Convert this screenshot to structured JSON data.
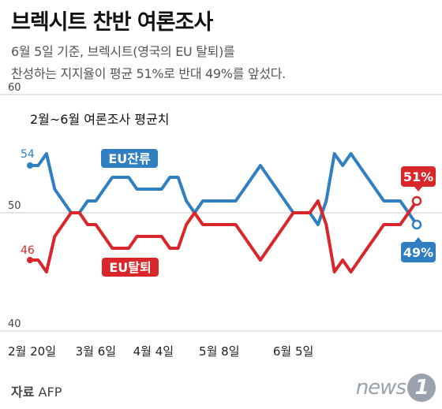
{
  "header": {
    "title": "브렉시트 찬반 여론조사",
    "subtitle_line1": "6월 5일 기준, 브렉시트(영국의 EU 탈퇴)를",
    "subtitle_line2": "찬성하는 지지율이 평균 51%로 반대 49%를 앞섰다."
  },
  "footer": {
    "source_label": "자료",
    "source_value": "AFP",
    "logo_text": "news",
    "logo_mark": "1"
  },
  "colors": {
    "remain": "#2f7fc1",
    "leave": "#d9262a",
    "axis": "#cccccc"
  },
  "chart_data": {
    "type": "line",
    "title": "2월~6월 여론조사 평균치",
    "ylim": [
      40,
      60
    ],
    "y_ticks": [
      60,
      50,
      40
    ],
    "x_ticks": [
      "2월 20일",
      "3월 6일",
      "4월 4일",
      "5월 8일",
      "6월 5일"
    ],
    "x_tick_index": [
      0,
      8,
      15,
      23,
      32
    ],
    "series": [
      {
        "name": "EU잔류",
        "values": [
          54,
          54,
          55,
          52,
          51,
          50,
          50,
          51,
          51,
          52,
          53,
          53,
          53,
          52,
          52,
          52,
          52,
          53,
          53,
          51,
          50,
          51,
          51,
          51,
          51,
          51,
          52,
          53,
          54,
          53,
          52,
          51,
          50,
          50,
          50,
          49,
          51,
          55,
          54,
          55,
          54,
          53,
          52,
          51,
          51,
          51,
          50,
          49
        ],
        "start_label": "54",
        "end_label": "49%"
      },
      {
        "name": "EU탈퇴",
        "values": [
          46,
          46,
          45,
          48,
          49,
          50,
          50,
          49,
          49,
          48,
          47,
          47,
          47,
          48,
          48,
          48,
          48,
          47,
          47,
          49,
          50,
          49,
          49,
          49,
          49,
          49,
          48,
          47,
          46,
          47,
          48,
          49,
          50,
          50,
          50,
          51,
          49,
          45,
          46,
          45,
          46,
          47,
          48,
          49,
          49,
          49,
          50,
          51
        ],
        "start_label": "46",
        "end_label": "51%"
      }
    ]
  }
}
